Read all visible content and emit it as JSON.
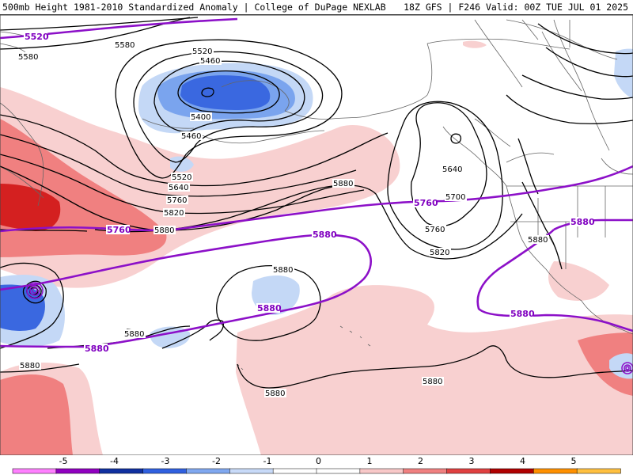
{
  "header": {
    "left": "500mb Height 1981-2010 Standardized Anomaly | College of DuPage NEXLAB",
    "right": "18Z GFS | F246 Valid: 00Z TUE JUL 01 2025"
  },
  "contour_labels": {
    "black": {
      "l5580a": "5580",
      "l5580b": "5580",
      "l5520": "5520",
      "l5460a": "5460",
      "l5400": "5400",
      "l5460b": "5460",
      "l5520b": "5520",
      "l5640": "5640",
      "l5760": "5760",
      "l5820": "5820",
      "l5880a": "5880",
      "l5880b": "5880",
      "l5640b": "5640",
      "l5700": "5700",
      "l5760b": "5760",
      "l5820b": "5820",
      "l5880c": "5880",
      "l5880d": "5880",
      "l5880e": "5880",
      "l5880f": "5880",
      "l5880g": "5880",
      "l5880h": "5880"
    },
    "purple": {
      "p5520": "5520",
      "p5760a": "5760",
      "p5760b": "5760",
      "p5880a": "5880",
      "p5880b": "5880",
      "p5880c": "5880",
      "p5880d": "5880",
      "p5880e": "5880"
    }
  },
  "colorbar": {
    "ticks": [
      "-5",
      "-4",
      "-3",
      "-2",
      "-1",
      "0",
      "1",
      "2",
      "3",
      "4",
      "5"
    ],
    "colors": [
      "#ff80ff",
      "#9000c0",
      "#1030a0",
      "#3060e0",
      "#80a8f0",
      "#c8daf8",
      "#ffffff",
      "#ffffff",
      "#f8c8c8",
      "#f08080",
      "#e04040",
      "#b00000",
      "#ff9000",
      "#ffc040"
    ]
  },
  "colors": {
    "purple_contour": "#8c10c8",
    "neg_light": "#c4d8f6",
    "neg_mid": "#7aa4ee",
    "neg_dark": "#3a68e0",
    "pos_light": "#f8d0d0",
    "pos_mid": "#f08080",
    "pos_dark": "#d42020"
  }
}
